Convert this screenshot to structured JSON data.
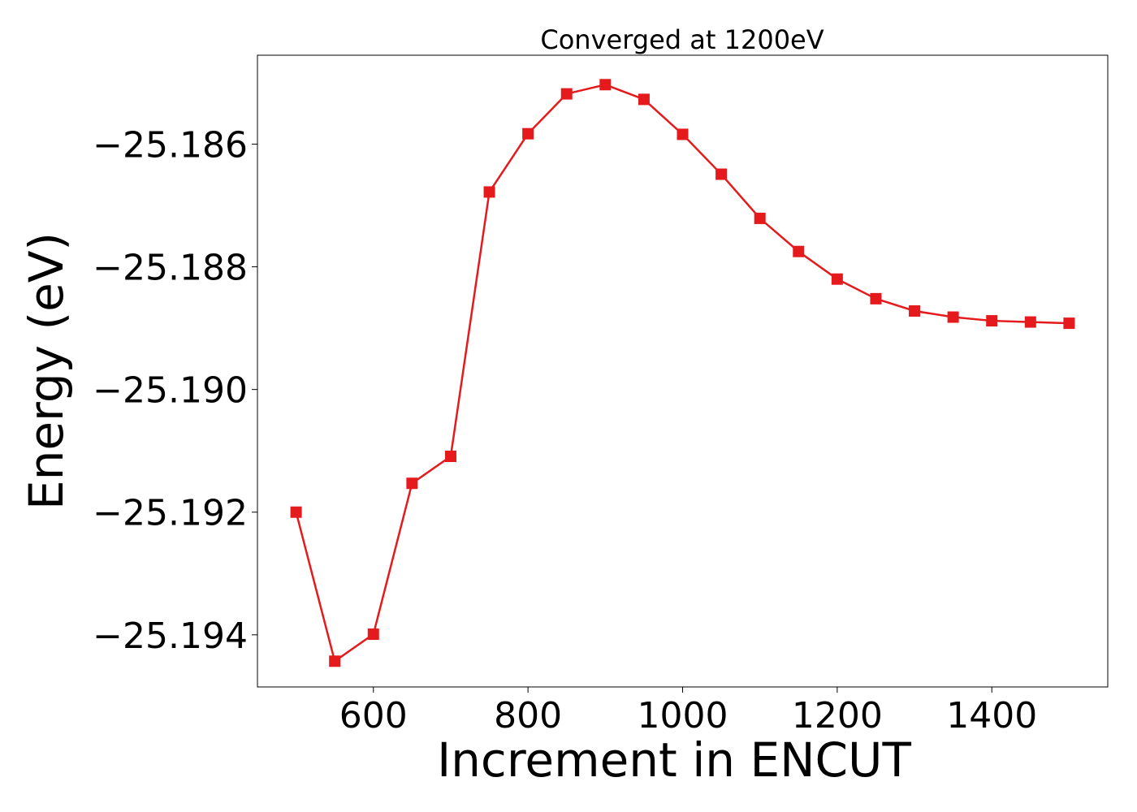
{
  "chart_data": {
    "type": "line",
    "title": "Converged at 1200eV",
    "xlabel": "Increment in ENCUT",
    "ylabel": "Energy (eV)",
    "xlim": [
      450,
      1550
    ],
    "ylim": [
      -25.19485,
      -25.18455
    ],
    "xticks": [
      600,
      800,
      1000,
      1200,
      1400
    ],
    "xtick_labels": [
      "600",
      "800",
      "1000",
      "1200",
      "1400"
    ],
    "yticks": [
      -25.186,
      -25.188,
      -25.19,
      -25.192,
      -25.194
    ],
    "ytick_labels": [
      "−25.186",
      "−25.188",
      "−25.190",
      "−25.192",
      "−25.194"
    ],
    "grid": false,
    "legend": "none",
    "series_color": "#e41a1c",
    "marker": "square",
    "x": [
      500,
      550,
      600,
      650,
      700,
      750,
      800,
      850,
      900,
      950,
      1000,
      1050,
      1100,
      1150,
      1200,
      1250,
      1300,
      1350,
      1400,
      1450,
      1500
    ],
    "y": [
      -25.192,
      -25.19443,
      -25.19399,
      -25.19153,
      -25.19109,
      -25.18678,
      -25.18583,
      -25.18518,
      -25.18503,
      -25.18527,
      -25.18584,
      -25.18649,
      -25.18721,
      -25.18775,
      -25.1882,
      -25.18852,
      -25.18872,
      -25.18882,
      -25.18888,
      -25.1889,
      -25.18892
    ]
  }
}
